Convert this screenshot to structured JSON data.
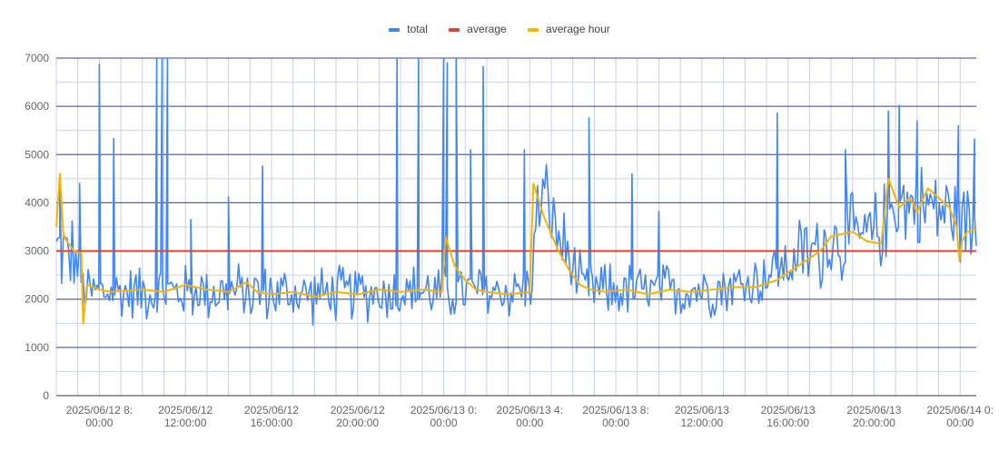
{
  "chart_data": {
    "type": "line",
    "title": "",
    "xlabel": "",
    "ylabel": "",
    "ylim": [
      0,
      7000
    ],
    "y_ticks": [
      "0",
      "1000",
      "2000",
      "3000",
      "4000",
      "5000",
      "6000",
      "7000"
    ],
    "x_range": [
      "2025-06-12T06:00:00",
      "2025-06-14T00:45:00"
    ],
    "x_ticks": [
      {
        "t": "2025-06-12T08:00:00",
        "line1": "2025/06/12 8:",
        "line2": "00:00"
      },
      {
        "t": "2025-06-12T12:00:00",
        "line1": "2025/06/12",
        "line2": "12:00:00"
      },
      {
        "t": "2025-06-12T16:00:00",
        "line1": "2025/06/12",
        "line2": "16:00:00"
      },
      {
        "t": "2025-06-12T20:00:00",
        "line1": "2025/06/12",
        "line2": "20:00:00"
      },
      {
        "t": "2025-06-13T00:00:00",
        "line1": "2025/06/13 0:",
        "line2": "00:00"
      },
      {
        "t": "2025-06-13T04:00:00",
        "line1": "2025/06/13 4:",
        "line2": "00:00"
      },
      {
        "t": "2025-06-13T08:00:00",
        "line1": "2025/06/13 8:",
        "line2": "00:00"
      },
      {
        "t": "2025-06-13T12:00:00",
        "line1": "2025/06/13",
        "line2": "12:00:00"
      },
      {
        "t": "2025-06-13T16:00:00",
        "line1": "2025/06/13",
        "line2": "16:00:00"
      },
      {
        "t": "2025-06-13T20:00:00",
        "line1": "2025/06/13",
        "line2": "20:00:00"
      },
      {
        "t": "2025-06-14T00:00:00",
        "line1": "2025/06/14 0:",
        "line2": "00:00"
      }
    ],
    "legend_position": "top",
    "grid": true,
    "series": [
      {
        "name": "total",
        "color": "#4285f4",
        "baseline": [
          [
            "2025-06-12T06:00:00",
            3000
          ],
          [
            "2025-06-12T06:50:00",
            2900
          ],
          [
            "2025-06-12T07:20:00",
            2150
          ],
          [
            "2025-06-12T10:00:00",
            2150
          ],
          [
            "2025-06-12T14:00:00",
            2150
          ],
          [
            "2025-06-12T18:00:00",
            2100
          ],
          [
            "2025-06-12T22:00:00",
            2150
          ],
          [
            "2025-06-13T00:00:00",
            2150
          ],
          [
            "2025-06-13T02:00:00",
            2150
          ],
          [
            "2025-06-13T04:00:00",
            2200
          ],
          [
            "2025-06-13T04:30:00",
            4300
          ],
          [
            "2025-06-13T05:30:00",
            3100
          ],
          [
            "2025-06-13T06:30:00",
            2200
          ],
          [
            "2025-06-13T10:00:00",
            2150
          ],
          [
            "2025-06-13T14:00:00",
            2300
          ],
          [
            "2025-06-13T16:00:00",
            2700
          ],
          [
            "2025-06-13T18:00:00",
            3200
          ],
          [
            "2025-06-13T20:00:00",
            3300
          ],
          [
            "2025-06-13T21:00:00",
            4000
          ],
          [
            "2025-06-13T23:00:00",
            3900
          ],
          [
            "2025-06-14T00:45:00",
            3500
          ]
        ],
        "spikes": [
          [
            "2025-06-12T06:10:00",
            4600
          ],
          [
            "2025-06-12T07:05:00",
            4400
          ],
          [
            "2025-06-12T08:00:00",
            6870
          ],
          [
            "2025-06-12T08:40:00",
            5330
          ],
          [
            "2025-06-12T10:40:00",
            7000
          ],
          [
            "2025-06-12T10:55:00",
            7000
          ],
          [
            "2025-06-12T11:10:00",
            7000
          ],
          [
            "2025-06-12T12:15:00",
            3650
          ],
          [
            "2025-06-12T14:00:00",
            4120
          ],
          [
            "2025-06-12T15:35:00",
            4760
          ],
          [
            "2025-06-12T21:50:00",
            7000
          ],
          [
            "2025-06-12T22:50:00",
            7000
          ],
          [
            "2025-06-13T00:00:00",
            7000
          ],
          [
            "2025-06-13T00:10:00",
            6900
          ],
          [
            "2025-06-13T00:35:00",
            7000
          ],
          [
            "2025-06-13T01:15:00",
            5100
          ],
          [
            "2025-06-13T01:50:00",
            6820
          ],
          [
            "2025-06-13T03:45:00",
            5100
          ],
          [
            "2025-06-13T06:45:00",
            5760
          ],
          [
            "2025-06-13T08:45:00",
            4600
          ],
          [
            "2025-06-13T10:00:00",
            3820
          ],
          [
            "2025-06-13T15:30:00",
            5860
          ],
          [
            "2025-06-13T18:40:00",
            5100
          ],
          [
            "2025-06-13T20:40:00",
            5900
          ],
          [
            "2025-06-13T21:10:00",
            6020
          ],
          [
            "2025-06-13T22:00:00",
            5700
          ],
          [
            "2025-06-13T23:55:00",
            5600
          ],
          [
            "2025-06-14T00:40:00",
            5320
          ]
        ],
        "noise_amplitude": 500,
        "points": 520
      },
      {
        "name": "average",
        "color": "#db4437",
        "value": 3000
      },
      {
        "name": "average hour",
        "color": "#f4b400",
        "points": [
          [
            "2025-06-12T06:00:00",
            3500
          ],
          [
            "2025-06-12T06:10:00",
            4600
          ],
          [
            "2025-06-12T06:20:00",
            3300
          ],
          [
            "2025-06-12T06:50:00",
            3000
          ],
          [
            "2025-06-12T07:10:00",
            2950
          ],
          [
            "2025-06-12T07:15:00",
            1500
          ],
          [
            "2025-06-12T07:25:00",
            2300
          ],
          [
            "2025-06-12T08:00:00",
            2200
          ],
          [
            "2025-06-12T08:30:00",
            2150
          ],
          [
            "2025-06-12T10:00:00",
            2200
          ],
          [
            "2025-06-12T11:00:00",
            2150
          ],
          [
            "2025-06-12T12:00:00",
            2300
          ],
          [
            "2025-06-12T13:00:00",
            2200
          ],
          [
            "2025-06-12T14:00:00",
            2150
          ],
          [
            "2025-06-12T14:50:00",
            2350
          ],
          [
            "2025-06-12T15:20:00",
            2150
          ],
          [
            "2025-06-12T16:00:00",
            2100
          ],
          [
            "2025-06-12T17:00:00",
            2150
          ],
          [
            "2025-06-12T18:00:00",
            2050
          ],
          [
            "2025-06-12T19:00:00",
            2150
          ],
          [
            "2025-06-12T20:00:00",
            2100
          ],
          [
            "2025-06-12T21:00:00",
            2200
          ],
          [
            "2025-06-12T22:00:00",
            2150
          ],
          [
            "2025-06-12T23:00:00",
            2200
          ],
          [
            "2025-06-12T23:55:00",
            2150
          ],
          [
            "2025-06-13T00:05:00",
            3300
          ],
          [
            "2025-06-13T00:30:00",
            2700
          ],
          [
            "2025-06-13T01:00:00",
            2400
          ],
          [
            "2025-06-13T01:30:00",
            2200
          ],
          [
            "2025-06-13T02:00:00",
            2150
          ],
          [
            "2025-06-13T03:00:00",
            2100
          ],
          [
            "2025-06-13T04:00:00",
            2150
          ],
          [
            "2025-06-13T04:10:00",
            4400
          ],
          [
            "2025-06-13T04:40:00",
            3700
          ],
          [
            "2025-06-13T05:20:00",
            3000
          ],
          [
            "2025-06-13T05:50:00",
            2600
          ],
          [
            "2025-06-13T06:20:00",
            2300
          ],
          [
            "2025-06-13T06:50:00",
            2200
          ],
          [
            "2025-06-13T07:30:00",
            2150
          ],
          [
            "2025-06-13T08:30:00",
            2200
          ],
          [
            "2025-06-13T09:30:00",
            2100
          ],
          [
            "2025-06-13T10:30:00",
            2200
          ],
          [
            "2025-06-13T11:30:00",
            2150
          ],
          [
            "2025-06-13T12:30:00",
            2200
          ],
          [
            "2025-06-13T13:30:00",
            2250
          ],
          [
            "2025-06-13T14:30:00",
            2250
          ],
          [
            "2025-06-13T15:30:00",
            2400
          ],
          [
            "2025-06-13T16:30:00",
            2700
          ],
          [
            "2025-06-13T17:30:00",
            3000
          ],
          [
            "2025-06-13T18:00:00",
            3300
          ],
          [
            "2025-06-13T19:00:00",
            3400
          ],
          [
            "2025-06-13T19:40:00",
            3200
          ],
          [
            "2025-06-13T20:20:00",
            3150
          ],
          [
            "2025-06-13T20:40:00",
            4500
          ],
          [
            "2025-06-13T21:10:00",
            3900
          ],
          [
            "2025-06-13T21:40:00",
            4100
          ],
          [
            "2025-06-13T22:00:00",
            3800
          ],
          [
            "2025-06-13T22:30:00",
            4300
          ],
          [
            "2025-06-13T23:00:00",
            4100
          ],
          [
            "2025-06-13T23:30:00",
            3900
          ],
          [
            "2025-06-13T23:50:00",
            3500
          ],
          [
            "2025-06-13T23:58:00",
            2800
          ],
          [
            "2025-06-14T00:05:00",
            3200
          ],
          [
            "2025-06-14T00:20:00",
            3400
          ],
          [
            "2025-06-14T00:45:00",
            3450
          ]
        ]
      }
    ]
  }
}
